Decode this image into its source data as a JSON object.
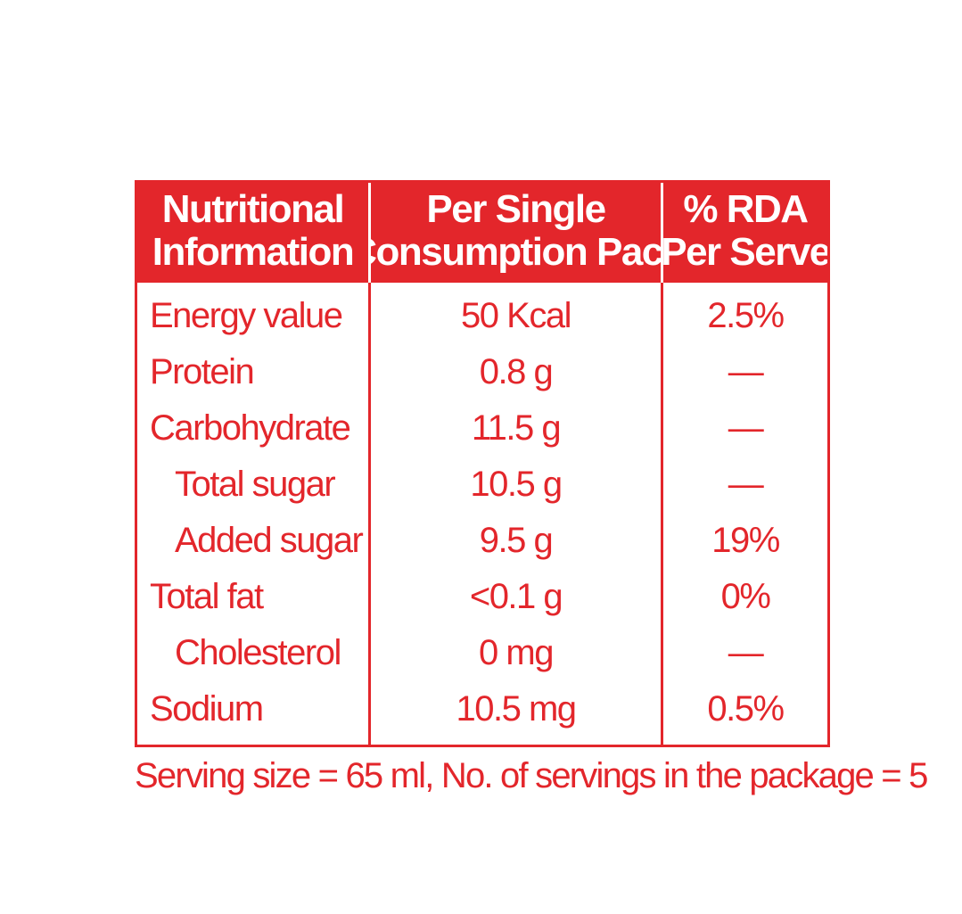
{
  "header": {
    "nutrient_line1": "Nutritional",
    "nutrient_line2": "Information",
    "pack_line1": "Per Single",
    "pack_line2": "Consumption Pack",
    "rda_line1": "% RDA",
    "rda_line2": "Per Serve"
  },
  "rows": [
    {
      "name": "Energy value",
      "amount": "50 Kcal",
      "rda": "2.5%"
    },
    {
      "name": "Protein",
      "amount": "0.8 g",
      "rda": "—"
    },
    {
      "name": "Carbohydrate",
      "amount": "11.5 g",
      "rda": "—"
    },
    {
      "name": "Total sugar",
      "amount": "10.5 g",
      "rda": "—"
    },
    {
      "name": "Added sugar",
      "amount": "9.5 g",
      "rda": "19%"
    },
    {
      "name": "Total fat",
      "amount": "<0.1 g",
      "rda": "0%"
    },
    {
      "name": "Cholesterol",
      "amount": "0 mg",
      "rda": "—"
    },
    {
      "name": "Sodium",
      "amount": "10.5 mg",
      "rda": "0.5%"
    }
  ],
  "footnote": "Serving size = 65 ml, No. of servings in the package = 5",
  "colors": {
    "accent": "#e3262b",
    "background": "#ffffff"
  }
}
